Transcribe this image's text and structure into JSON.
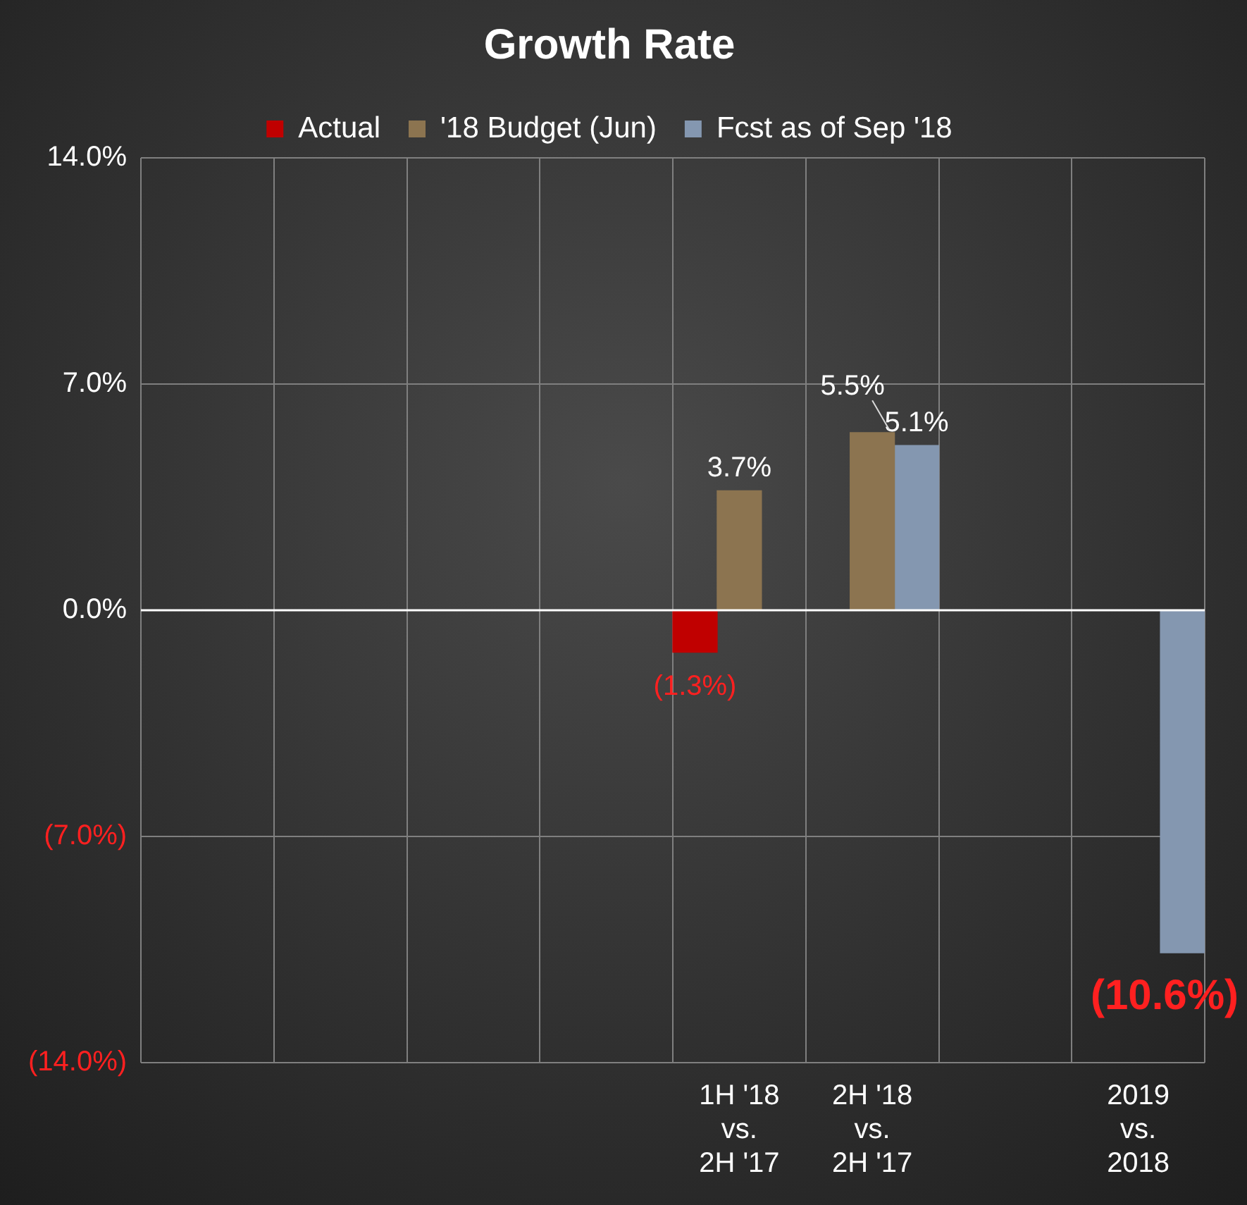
{
  "chart_data": {
    "type": "bar",
    "title": "Growth Rate",
    "categories": [
      null,
      null,
      null,
      null,
      "1H '18 vs. 2H '17",
      "2H '18 vs. 2H '17",
      null,
      "2019 vs. 2018"
    ],
    "series": [
      {
        "name": "Actual",
        "color": "#c00000",
        "values": [
          null,
          null,
          null,
          null,
          -1.3,
          null,
          null,
          null
        ],
        "value_labels": [
          null,
          null,
          null,
          null,
          "(1.3%)",
          null,
          null,
          null
        ]
      },
      {
        "name": "'18 Budget (Jun)",
        "color": "#8c7450",
        "values": [
          null,
          null,
          null,
          null,
          3.7,
          5.5,
          null,
          null
        ],
        "value_labels": [
          null,
          null,
          null,
          null,
          "3.7%",
          "5.5%",
          null,
          null
        ]
      },
      {
        "name": "Fcst as of Sep '18",
        "color": "#8497b0",
        "values": [
          null,
          null,
          null,
          null,
          null,
          5.1,
          null,
          -10.6
        ],
        "value_labels": [
          null,
          null,
          null,
          null,
          null,
          "5.1%",
          null,
          "(10.6%)"
        ]
      }
    ],
    "ylim": [
      -14,
      14
    ],
    "yticks": [
      {
        "value": -14,
        "label": "(14.0%)"
      },
      {
        "value": -7,
        "label": "(7.0%)"
      },
      {
        "value": 0,
        "label": "0.0%"
      },
      {
        "value": 7,
        "label": "7.0%"
      },
      {
        "value": 14,
        "label": "14.0%"
      }
    ],
    "grid": true,
    "legend": "top"
  }
}
